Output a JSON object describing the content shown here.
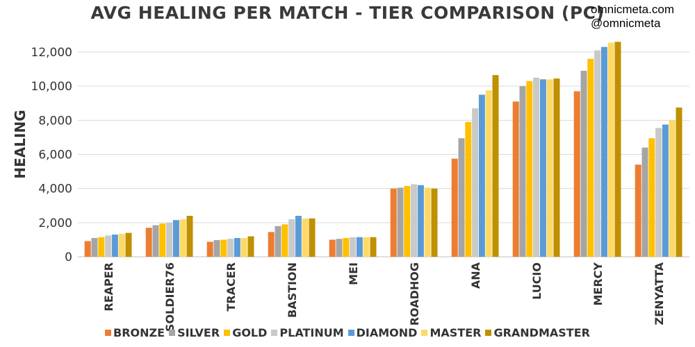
{
  "credit": {
    "site": "omnicmeta.com",
    "handle": "@omnicmeta"
  },
  "chart_data": {
    "type": "bar",
    "title": "AVG HEALING PER MATCH - TIER COMPARISON (PC)",
    "xlabel": "",
    "ylabel": "HEALING",
    "ylim": [
      0,
      12000
    ],
    "yticks": [
      0,
      2000,
      4000,
      6000,
      8000,
      10000,
      12000
    ],
    "ytick_labels": [
      "0",
      "2,000",
      "4,000",
      "6,000",
      "8,000",
      "10,000",
      "12,000"
    ],
    "grid": true,
    "legend": "bottom",
    "categories": [
      "REAPER",
      "SOLDIER76",
      "TRACER",
      "BASTION",
      "MEI",
      "ROADHOG",
      "ANA",
      "LUCIO",
      "MERCY",
      "ZENYATTA"
    ],
    "series": [
      {
        "name": "BRONZE",
        "color": "#ED7D31",
        "values": [
          920,
          1700,
          880,
          1450,
          1000,
          4000,
          5750,
          9100,
          9700,
          5400
        ]
      },
      {
        "name": "SILVER",
        "color": "#A5A5A5",
        "values": [
          1100,
          1850,
          980,
          1800,
          1050,
          4050,
          6950,
          10000,
          10900,
          6400
        ]
      },
      {
        "name": "GOLD",
        "color": "#FFC000",
        "values": [
          1150,
          1950,
          1000,
          1900,
          1100,
          4150,
          7900,
          10300,
          11600,
          6950
        ]
      },
      {
        "name": "PLATINUM",
        "color": "#C9C9C9",
        "values": [
          1250,
          2000,
          1050,
          2200,
          1150,
          4250,
          8700,
          10500,
          12100,
          7550
        ]
      },
      {
        "name": "DIAMOND",
        "color": "#5B9BD5",
        "values": [
          1300,
          2150,
          1100,
          2400,
          1150,
          4200,
          9500,
          10400,
          12300,
          7750
        ]
      },
      {
        "name": "MASTER",
        "color": "#FFD966",
        "values": [
          1350,
          2200,
          1100,
          2250,
          1150,
          4050,
          9750,
          10400,
          12550,
          8000
        ]
      },
      {
        "name": "GRANDMASTER",
        "color": "#BF9000",
        "values": [
          1400,
          2400,
          1200,
          2250,
          1150,
          4000,
          10650,
          10450,
          12600,
          8750
        ]
      }
    ]
  }
}
